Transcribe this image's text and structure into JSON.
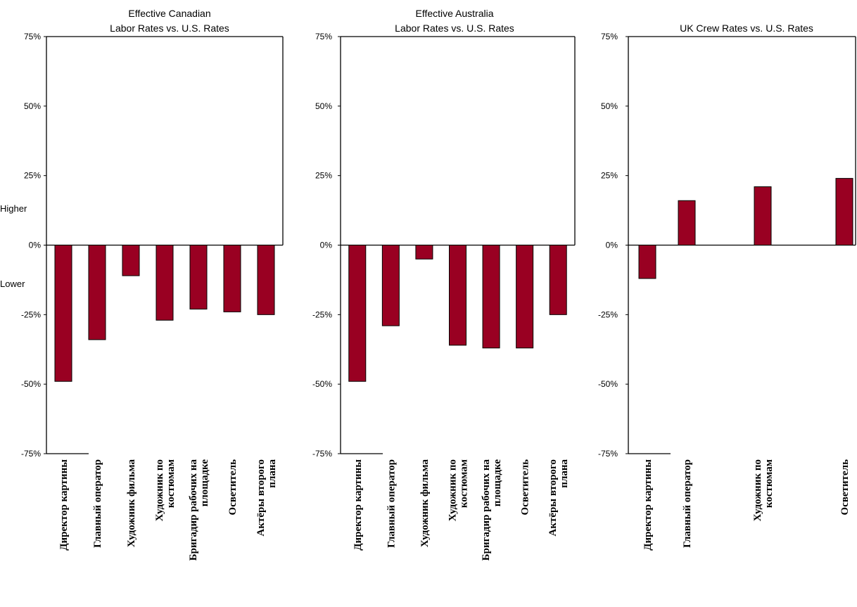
{
  "chart_data": [
    {
      "type": "bar",
      "title_lines": [
        "Effective Canadian",
        "Labor Rates vs. U.S. Rates"
      ],
      "categories": [
        [
          "Директор картины"
        ],
        [
          "Главный оператор"
        ],
        [
          "Художник фильма"
        ],
        [
          "Художник по",
          "костюмам"
        ],
        [
          "Бригадир рабочих на",
          "площадке"
        ],
        [
          "Осветитель"
        ],
        [
          "Актёры второго",
          "плана"
        ]
      ],
      "values": [
        -49,
        -34,
        -11,
        -27,
        -23,
        -24,
        -25
      ],
      "ylim": [
        -75,
        75
      ],
      "yticks": [
        "75%",
        "50%",
        "25%",
        "0%",
        "-25%",
        "-50%",
        "-75%"
      ],
      "side_labels": [
        "Higher",
        "Lower"
      ],
      "bar_color": "#990022"
    },
    {
      "type": "bar",
      "title_lines": [
        "Effective Australia",
        "Labor Rates vs. U.S. Rates"
      ],
      "categories": [
        [
          "Директор картины"
        ],
        [
          "Главный оператор"
        ],
        [
          "Художник фильма"
        ],
        [
          "Художник по",
          "костюмам"
        ],
        [
          "Бригадир рабочих на",
          "площадке"
        ],
        [
          "Осветитель"
        ],
        [
          "Актёры второго",
          "плана"
        ]
      ],
      "values": [
        -49,
        -29,
        -5,
        -36,
        -37,
        -37,
        -25
      ],
      "ylim": [
        -75,
        75
      ],
      "yticks": [
        "75%",
        "50%",
        "25%",
        "0%",
        "-25%",
        "-50%",
        "-75%"
      ],
      "bar_color": "#990022"
    },
    {
      "type": "bar",
      "title_lines": [
        "UK Crew Rates vs. U.S. Rates"
      ],
      "categories": [
        [
          "Директор картины"
        ],
        [
          "Главный оператор"
        ],
        [
          "Художник по",
          "костюмам"
        ],
        [
          "Осветитель"
        ]
      ],
      "values": [
        -12,
        16,
        21,
        24
      ],
      "ylim": [
        -75,
        75
      ],
      "yticks": [
        "75%",
        "50%",
        "25%",
        "0%",
        "-25%",
        "-50%",
        "-75%"
      ],
      "bar_color": "#990022"
    }
  ]
}
